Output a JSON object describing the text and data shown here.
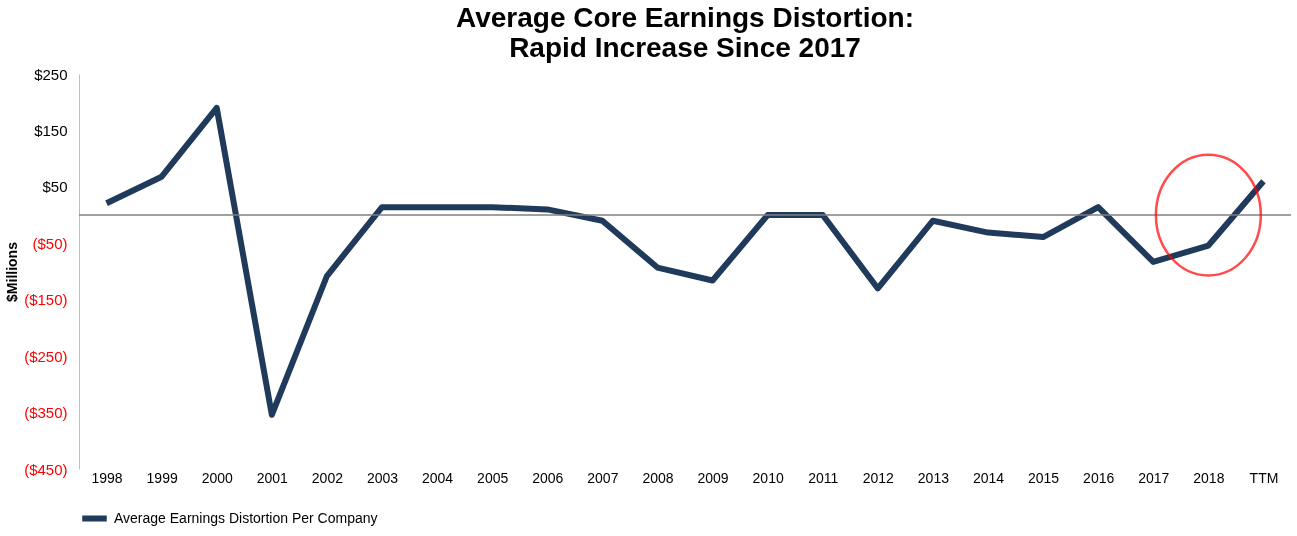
{
  "chart_data": {
    "type": "line",
    "title": [
      "Average Core Earnings Distortion:",
      "Rapid Increase Since 2017"
    ],
    "ylabel": "$Millions",
    "categories": [
      "1998",
      "1999",
      "2000",
      "2001",
      "2002",
      "2003",
      "2004",
      "2005",
      "2006",
      "2007",
      "2008",
      "2009",
      "2010",
      "2011",
      "2012",
      "2013",
      "2014",
      "2015",
      "2016",
      "2017",
      "2018",
      "TTM"
    ],
    "series": [
      {
        "name": "Average Earnings Distortion Per Company",
        "color": "#1f3a5a",
        "values": [
          21,
          68,
          190,
          -354,
          -108,
          14,
          14,
          14,
          10,
          -10,
          -93,
          -116,
          0,
          0,
          -130,
          -10,
          -31,
          -39,
          14,
          -83,
          -54,
          60
        ]
      }
    ],
    "ylim": [
      -450,
      250
    ],
    "yticks": [
      {
        "value": -450,
        "label": "($450)"
      },
      {
        "value": -350,
        "label": "($350)"
      },
      {
        "value": -250,
        "label": "($250)"
      },
      {
        "value": -150,
        "label": "($150)"
      },
      {
        "value": -50,
        "label": "($50)"
      },
      {
        "value": 50,
        "label": "$50"
      },
      {
        "value": 150,
        "label": "$150"
      },
      {
        "value": 250,
        "label": "$250"
      }
    ],
    "ref_lines": [
      {
        "axis": "y",
        "value": 0,
        "color": "#808080"
      }
    ],
    "grid": false,
    "legend": "bottom",
    "marker": "none",
    "line_style": "solid"
  }
}
